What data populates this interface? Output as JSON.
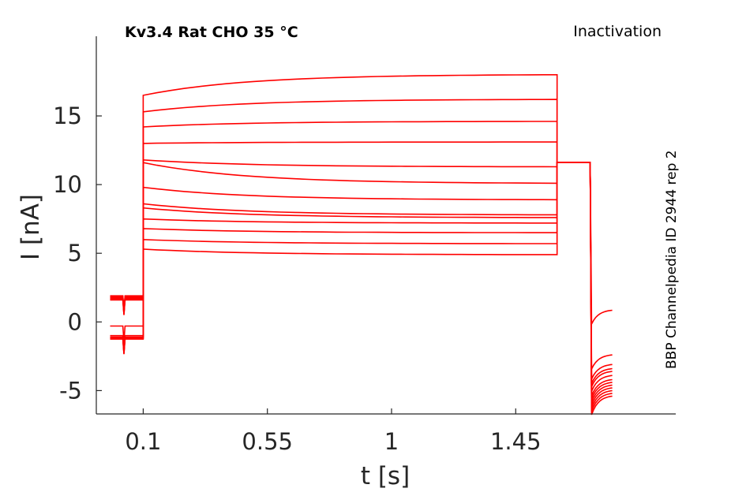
{
  "chart_data": {
    "type": "line",
    "title_left": "Kv3.4  Rat  CHO  35 °C",
    "title_right": "Inactivation",
    "side_label": "BBP Channelpedia ID 2944 rep 2",
    "xlabel": "t [s]",
    "ylabel": "I [nA]",
    "xlim": [
      -0.07,
      2.03
    ],
    "ylim": [
      -6.7,
      20.8
    ],
    "xticks": [
      0.1,
      0.55,
      1,
      1.45
    ],
    "xtick_labels": [
      "0.1",
      "0.55",
      "1",
      "1.45"
    ],
    "yticks": [
      -5,
      0,
      5,
      10,
      15
    ],
    "ytick_labels": [
      "-5",
      "0",
      "5",
      "10",
      "15"
    ],
    "grid": false,
    "line_color": "#ff0000",
    "protocol_times": {
      "prepulse_start": -0.02,
      "notch": 0.03,
      "step_on": 0.1,
      "step_off": 1.6,
      "tail_end": 1.72,
      "end": 1.8
    },
    "series": [
      {
        "pre": 1.9,
        "on": 5.3,
        "off": 4.9,
        "tail": 11.6,
        "final": 0.85
      },
      {
        "pre": 1.85,
        "on": 6.0,
        "off": 5.7,
        "tail": 11.6,
        "final": -2.4
      },
      {
        "pre": 1.8,
        "on": 6.8,
        "off": 6.5,
        "tail": 11.6,
        "final": -3.1
      },
      {
        "pre": 1.75,
        "on": 7.5,
        "off": 7.2,
        "tail": 11.6,
        "final": -3.4
      },
      {
        "pre": 1.7,
        "on": 8.3,
        "off": 7.6,
        "tail": 11.6,
        "final": -3.6
      },
      {
        "pre": 1.65,
        "on": 8.6,
        "off": 7.8,
        "tail": 11.6,
        "final": -3.9
      },
      {
        "pre": 1.6,
        "on": 9.8,
        "off": 8.9,
        "tail": 11.6,
        "final": -4.2
      },
      {
        "pre": -0.3,
        "on": 11.6,
        "off": 10.1,
        "tail": 11.6,
        "final": -4.4
      },
      {
        "pre": -1.0,
        "on": 11.8,
        "off": 11.3,
        "tail": 11.6,
        "final": -4.6
      },
      {
        "pre": -1.1,
        "on": 13.0,
        "off": 13.1,
        "tail": 11.6,
        "final": -4.8
      },
      {
        "pre": -1.15,
        "on": 14.2,
        "off": 14.6,
        "tail": 11.6,
        "final": -5.0
      },
      {
        "pre": -1.2,
        "on": 15.3,
        "off": 16.2,
        "tail": 11.6,
        "final": -5.2
      },
      {
        "pre": -1.25,
        "on": 16.5,
        "off": 18.0,
        "tail": 11.6,
        "final": -5.4
      }
    ]
  }
}
